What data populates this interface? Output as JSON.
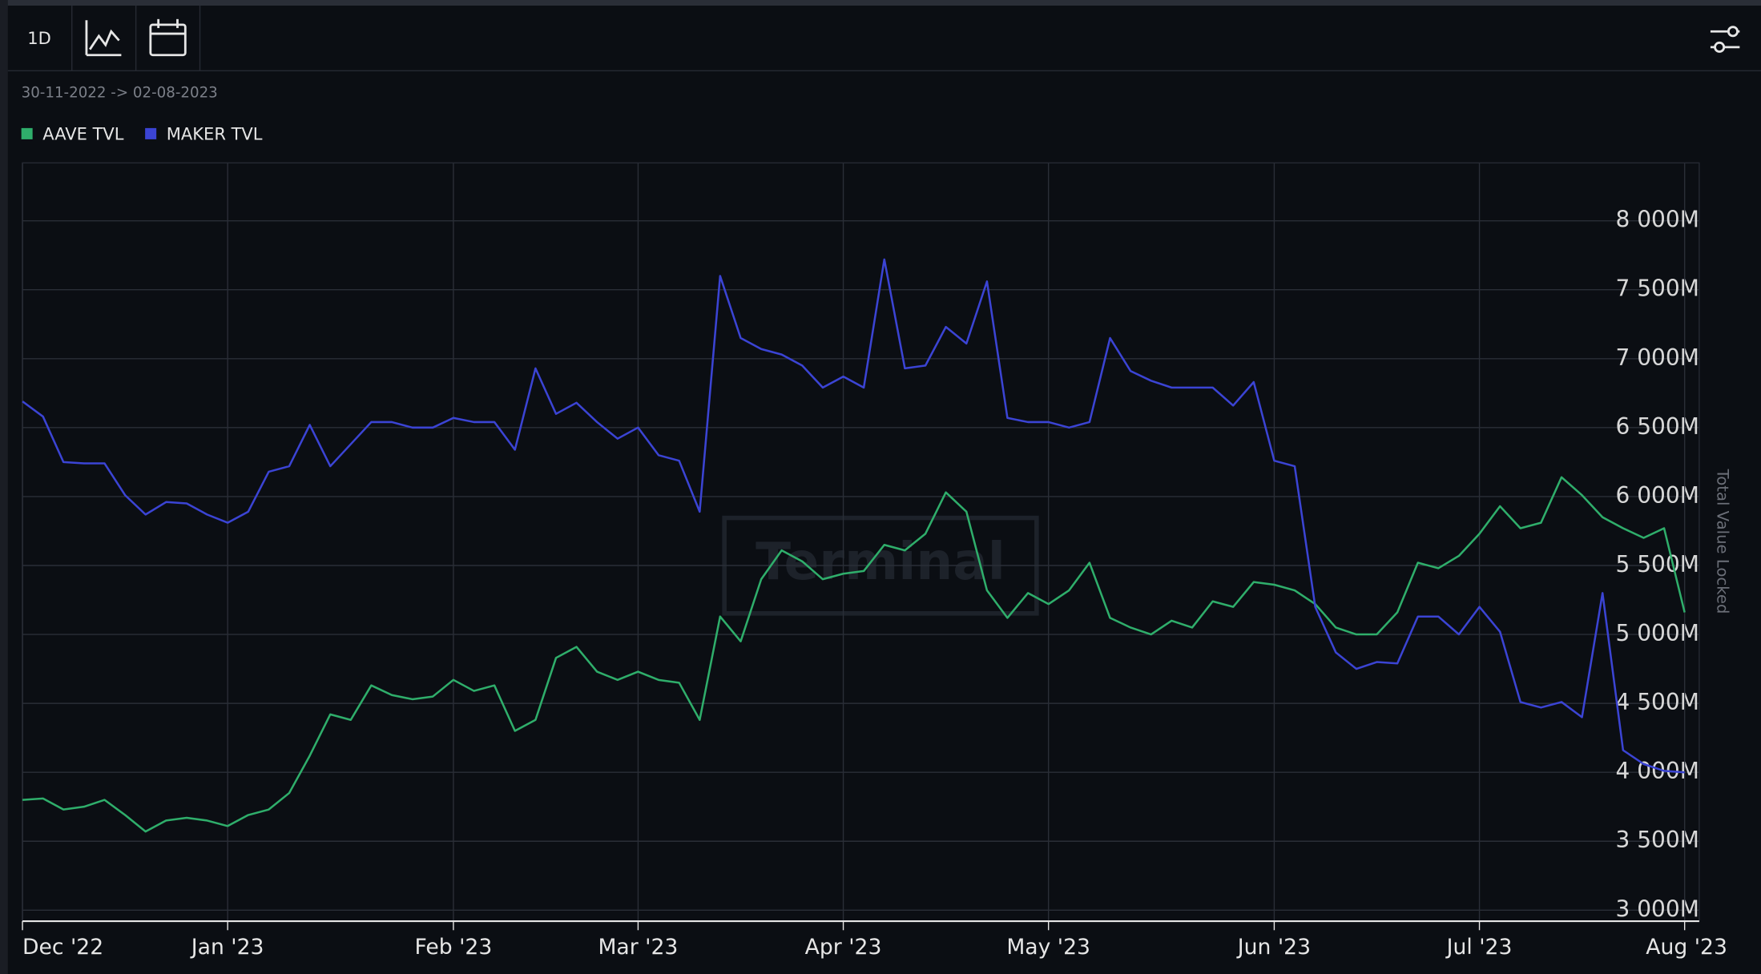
{
  "toolbar": {
    "interval": "1D"
  },
  "chart_data": {
    "type": "line",
    "date_range": "30-11-2022 -> 02-08-2023",
    "watermark": "Terminal",
    "y_axis_label": "Total Value Locked",
    "categories": [
      "Dec '22",
      null,
      null,
      null,
      null,
      null,
      null,
      null,
      null,
      null,
      "Jan '23",
      null,
      null,
      null,
      null,
      null,
      null,
      null,
      null,
      null,
      null,
      "Feb '23",
      null,
      null,
      null,
      null,
      null,
      null,
      null,
      null,
      "Mar '23",
      null,
      null,
      null,
      null,
      null,
      null,
      null,
      null,
      null,
      "Apr '23",
      null,
      null,
      null,
      null,
      null,
      null,
      null,
      null,
      null,
      "May '23",
      null,
      null,
      null,
      null,
      null,
      null,
      null,
      null,
      null,
      null,
      "Jun '23",
      null,
      null,
      null,
      null,
      null,
      null,
      null,
      null,
      null,
      "Jul '23",
      null,
      null,
      null,
      null,
      null,
      null,
      null,
      null,
      null,
      "Aug '23"
    ],
    "series": [
      {
        "name": "AAVE TVL",
        "color": "#2fae6b",
        "values": [
          3800,
          3810,
          3730,
          3750,
          3800,
          3690,
          3570,
          3650,
          3670,
          3650,
          3610,
          3690,
          3730,
          3850,
          4120,
          4420,
          4380,
          4630,
          4560,
          4530,
          4550,
          4670,
          4590,
          4630,
          4300,
          4380,
          4830,
          4910,
          4730,
          4670,
          4730,
          4670,
          4650,
          4380,
          5130,
          4950,
          5400,
          5610,
          5530,
          5400,
          5440,
          5460,
          5650,
          5610,
          5730,
          6030,
          5890,
          5320,
          5120,
          5300,
          5220,
          5320,
          5520,
          5120,
          5050,
          5000,
          5100,
          5050,
          5240,
          5200,
          5380,
          5360,
          5320,
          5220,
          5050,
          5000,
          5000,
          5160,
          5520,
          5480,
          5570,
          5730,
          5930,
          5770,
          5810,
          6140,
          6010,
          5850,
          5770,
          5700,
          5770,
          5160
        ]
      },
      {
        "name": "MAKER TVL",
        "color": "#3b44d4",
        "values": [
          6690,
          6580,
          6250,
          6240,
          6240,
          6010,
          5870,
          5960,
          5950,
          5870,
          5810,
          5890,
          6180,
          6220,
          6520,
          6220,
          6380,
          6540,
          6540,
          6500,
          6500,
          6570,
          6540,
          6540,
          6340,
          6930,
          6600,
          6680,
          6540,
          6420,
          6500,
          6300,
          6260,
          5890,
          7600,
          7150,
          7070,
          7030,
          6950,
          6790,
          6870,
          6790,
          7720,
          6930,
          6950,
          7230,
          7110,
          7560,
          6570,
          6540,
          6540,
          6500,
          6540,
          7150,
          6910,
          6840,
          6790,
          6790,
          6790,
          6660,
          6830,
          6260,
          6220,
          5200,
          4870,
          4750,
          4800,
          4790,
          5130,
          5130,
          5000,
          5200,
          5020,
          4510,
          4470,
          4510,
          4400,
          5300,
          4160,
          4060,
          4010,
          4000
        ]
      }
    ],
    "ylim": [
      2920,
      8420
    ],
    "yticks": [
      {
        "value": 3000,
        "label": "3 000M"
      },
      {
        "value": 3500,
        "label": "3 500M"
      },
      {
        "value": 4000,
        "label": "4 000M"
      },
      {
        "value": 4500,
        "label": "4 500M"
      },
      {
        "value": 5000,
        "label": "5 000M"
      },
      {
        "value": 5500,
        "label": "5 500M"
      },
      {
        "value": 6000,
        "label": "6 000M"
      },
      {
        "value": 6500,
        "label": "6 500M"
      },
      {
        "value": 7000,
        "label": "7 000M"
      },
      {
        "value": 7500,
        "label": "7 500M"
      },
      {
        "value": 8000,
        "label": "8 000M"
      }
    ],
    "grid": true
  }
}
